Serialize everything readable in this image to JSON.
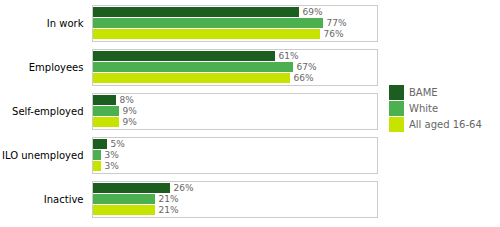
{
  "chart_data": {
    "type": "bar",
    "orientation": "horizontal",
    "categories": [
      "In work",
      "Employees",
      "Self-employed",
      "ILO unemployed",
      "Inactive"
    ],
    "series": [
      {
        "name": "BAME",
        "color": "#1b5e20",
        "values": [
          69,
          61,
          8,
          5,
          26
        ],
        "value_labels": [
          "69%",
          "61%",
          "8%",
          "5%",
          "26%"
        ]
      },
      {
        "name": "White",
        "color": "#4caf50",
        "values": [
          77,
          67,
          9,
          3,
          21
        ],
        "value_labels": [
          "77%",
          "67%",
          "9%",
          "3%",
          "21%"
        ]
      },
      {
        "name": "All aged 16-64",
        "color": "#c6e400",
        "values": [
          76,
          66,
          9,
          3,
          21
        ],
        "value_labels": [
          "76%",
          "66%",
          "9%",
          "3%",
          "21%"
        ]
      }
    ],
    "xlim": [
      0,
      95
    ],
    "xticks": [],
    "tick_labels": "y",
    "grid": false,
    "data_labels": true,
    "legend": "right"
  }
}
